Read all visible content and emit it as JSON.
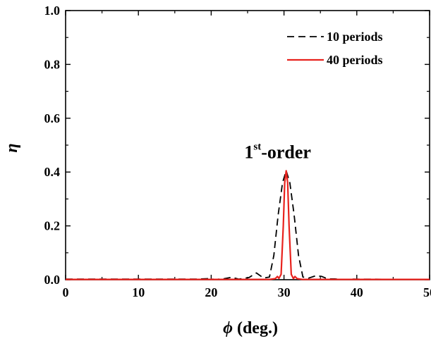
{
  "chart_data": {
    "type": "line",
    "xlabel_symbol": "ϕ",
    "xlabel_unit": "(deg.)",
    "ylabel": "η",
    "xlim": [
      0,
      50
    ],
    "ylim": [
      0,
      1.0
    ],
    "x_ticks": [
      0,
      10,
      20,
      30,
      40,
      50
    ],
    "x_tick_labels": [
      "0",
      "10",
      "20",
      "30",
      "40",
      "50"
    ],
    "y_ticks": [
      0,
      0.2,
      0.4,
      0.6,
      0.8,
      1.0
    ],
    "y_tick_labels": [
      "0.0",
      "0.2",
      "0.4",
      "0.6",
      "0.8",
      "1.0"
    ],
    "grid": false,
    "legend_position": "top-right",
    "annotation": {
      "text_main": "1",
      "text_sup": "st",
      "text_rest": "-order",
      "x": 30.3,
      "y": 0.42
    },
    "series": [
      {
        "name": "10 periods",
        "color": "#000000",
        "style": "dashed",
        "points": [
          [
            0,
            0.002
          ],
          [
            18,
            0.002
          ],
          [
            19.5,
            0.004
          ],
          [
            20.6,
            0.001
          ],
          [
            21.8,
            0.004
          ],
          [
            22.8,
            0.009
          ],
          [
            23.8,
            0.002
          ],
          [
            25.2,
            0.008
          ],
          [
            26.2,
            0.025
          ],
          [
            27.2,
            0.006
          ],
          [
            28,
            0.01
          ],
          [
            28.6,
            0.09
          ],
          [
            29.2,
            0.24
          ],
          [
            29.8,
            0.36
          ],
          [
            30.3,
            0.405
          ],
          [
            30.8,
            0.36
          ],
          [
            31.4,
            0.24
          ],
          [
            32,
            0.09
          ],
          [
            32.6,
            0.01
          ],
          [
            33.4,
            0.006
          ],
          [
            34.4,
            0.015
          ],
          [
            35.2,
            0.012
          ],
          [
            36,
            0.003
          ],
          [
            37,
            0.003
          ],
          [
            38,
            0.001
          ],
          [
            39.5,
            0.002
          ],
          [
            50,
            0.001
          ]
        ]
      },
      {
        "name": "40 periods",
        "color": "#e8221d",
        "style": "solid",
        "points": [
          [
            0,
            0.001
          ],
          [
            28,
            0.001
          ],
          [
            28.8,
            0.004
          ],
          [
            29.1,
            0.012
          ],
          [
            29.3,
            0.005
          ],
          [
            29.6,
            0.02
          ],
          [
            29.9,
            0.2
          ],
          [
            30.1,
            0.36
          ],
          [
            30.3,
            0.405
          ],
          [
            30.5,
            0.36
          ],
          [
            30.7,
            0.2
          ],
          [
            31,
            0.02
          ],
          [
            31.3,
            0.004
          ],
          [
            31.5,
            0.012
          ],
          [
            31.8,
            0.004
          ],
          [
            32.5,
            0.001
          ],
          [
            50,
            0.001
          ]
        ]
      }
    ]
  }
}
